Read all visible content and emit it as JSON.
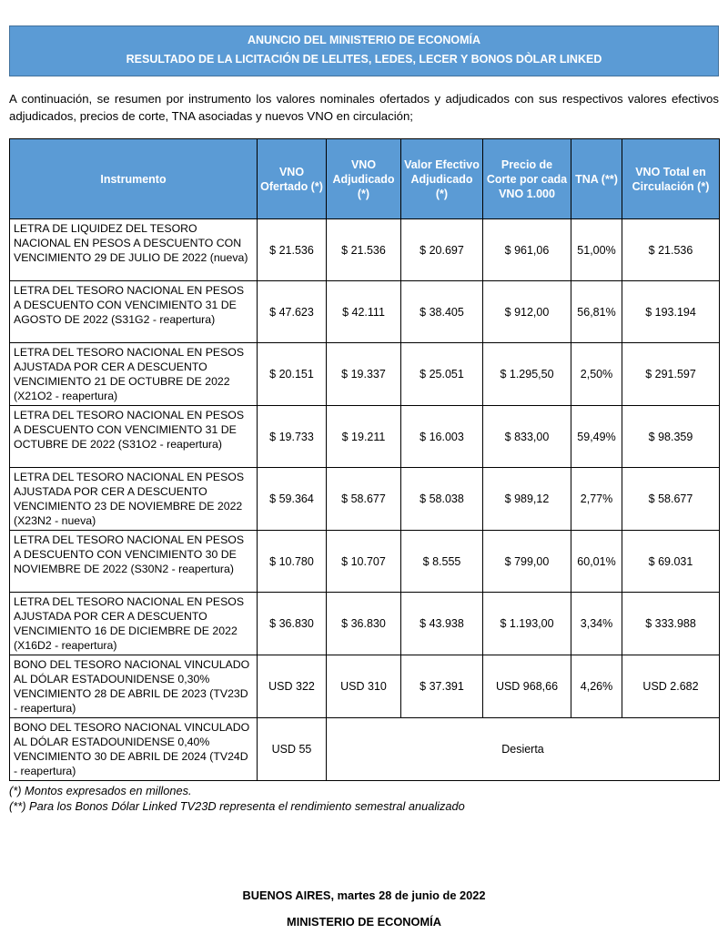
{
  "colors": {
    "accent_blue": "#5B9BD5",
    "accent_border": "#41719C"
  },
  "banner": {
    "line1": "ANUNCIO DEL MINISTERIO DE ECONOMÍA",
    "line2": "RESULTADO DE LA LICITACIÓN DE LELITES, LEDES, LECER Y BONOS DÒLAR LINKED"
  },
  "intro": "A continuación, se resumen por instrumento los valores nominales ofertados y adjudicados con sus respectivos valores efectivos adjudicados, precios de corte, TNA asociadas y nuevos VNO en circulación;",
  "table": {
    "columns": [
      "Instrumento",
      "VNO Ofertado (*)",
      "VNO Adjudicado (*)",
      "Valor Efectivo Adjudicado (*)",
      "Precio de Corte por cada VNO 1.000",
      "TNA (**)",
      "VNO Total en Circulación (*)"
    ],
    "rows": [
      {
        "instrument": "LETRA DE LIQUIDEZ DEL TESORO NACIONAL EN PESOS A DESCUENTO CON VENCIMIENTO 29 DE JULIO DE 2022 (nueva)",
        "values": [
          "$ 21.536",
          "$ 21.536",
          "$ 20.697",
          "$ 961,06",
          "51,00%",
          "$ 21.536"
        ]
      },
      {
        "instrument": "LETRA DEL TESORO NACIONAL EN PESOS A DESCUENTO CON VENCIMIENTO 31 DE AGOSTO DE 2022 (S31G2 - reapertura)",
        "values": [
          "$ 47.623",
          "$ 42.111",
          "$ 38.405",
          "$ 912,00",
          "56,81%",
          "$ 193.194"
        ]
      },
      {
        "instrument": "LETRA DEL TESORO NACIONAL EN PESOS AJUSTADA POR CER A DESCUENTO VENCIMIENTO 21 DE OCTUBRE DE 2022 (X21O2 - reapertura)",
        "values": [
          "$ 20.151",
          "$ 19.337",
          "$ 25.051",
          "$ 1.295,50",
          "2,50%",
          "$ 291.597"
        ]
      },
      {
        "instrument": "LETRA DEL TESORO NACIONAL EN PESOS A DESCUENTO CON VENCIMIENTO 31 DE OCTUBRE DE 2022 (S31O2 - reapertura)",
        "values": [
          "$ 19.733",
          "$ 19.211",
          "$ 16.003",
          "$ 833,00",
          "59,49%",
          "$ 98.359"
        ]
      },
      {
        "instrument": "LETRA DEL TESORO NACIONAL EN PESOS AJUSTADA POR CER A DESCUENTO VENCIMIENTO 23 DE NOVIEMBRE DE 2022 (X23N2 - nueva)",
        "values": [
          "$ 59.364",
          "$ 58.677",
          "$ 58.038",
          "$ 989,12",
          "2,77%",
          "$ 58.677"
        ]
      },
      {
        "instrument": "LETRA DEL TESORO NACIONAL EN PESOS A DESCUENTO CON VENCIMIENTO 30 DE NOVIEMBRE DE 2022 (S30N2 - reapertura)",
        "values": [
          "$ 10.780",
          "$ 10.707",
          "$ 8.555",
          "$ 799,00",
          "60,01%",
          "$ 69.031"
        ]
      },
      {
        "instrument": "LETRA DEL TESORO NACIONAL EN PESOS AJUSTADA POR CER A DESCUENTO VENCIMIENTO 16 DE DICIEMBRE DE 2022 (X16D2 - reapertura)",
        "values": [
          "$ 36.830",
          "$ 36.830",
          "$ 43.938",
          "$ 1.193,00",
          "3,34%",
          "$ 333.988"
        ]
      },
      {
        "instrument": "BONO DEL TESORO NACIONAL VINCULADO AL DÓLAR ESTADOUNIDENSE 0,30% VENCIMIENTO 28 DE ABRIL DE 2023 (TV23D - reapertura)",
        "values": [
          "USD 322",
          "USD 310",
          "$ 37.391",
          "USD 968,66",
          "4,26%",
          "USD 2.682"
        ]
      },
      {
        "instrument": "BONO DEL TESORO NACIONAL VINCULADO AL DÓLAR ESTADOUNIDENSE 0,40% VENCIMIENTO 30 DE ABRIL DE 2024 (TV24D - reapertura)",
        "values": [
          "USD 55"
        ],
        "merged": "Desierta"
      }
    ]
  },
  "footnotes": [
    "(*) Montos expresados en millones.",
    "(**) Para los Bonos Dólar Linked TV23D representa el rendimiento semestral anualizado"
  ],
  "footer": {
    "line1": "BUENOS AIRES, martes 28 de junio de 2022",
    "line2": "MINISTERIO DE ECONOMÍA"
  }
}
